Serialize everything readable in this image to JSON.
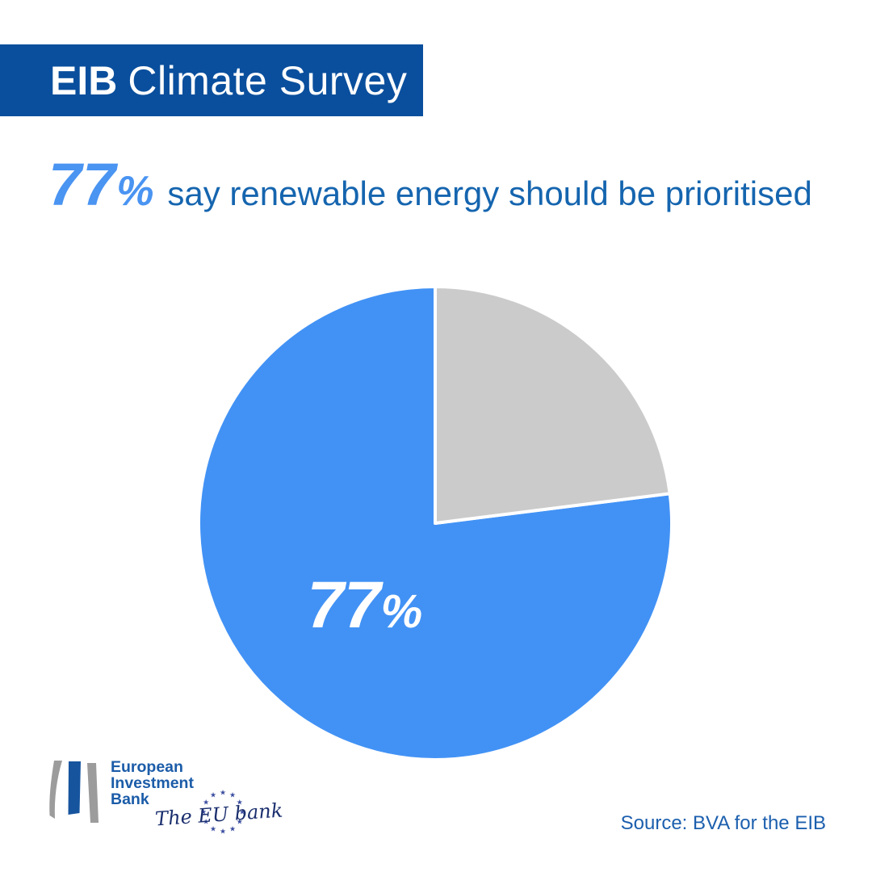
{
  "banner": {
    "brand": "EIB",
    "title": "Climate Survey"
  },
  "headline": {
    "stat": "77",
    "stat_unit": "%",
    "text": "say renewable energy should be prioritised"
  },
  "chart_data": {
    "type": "pie",
    "title": "77% say renewable energy should be prioritised",
    "slices": [
      {
        "label_value": "77",
        "label_unit": "%",
        "value": 77,
        "color": "#4292F5"
      },
      {
        "value": 23,
        "color": "#CBCBCB"
      }
    ],
    "start_angle_deg": -90,
    "direction": "counter-clockwise",
    "stroke_color": "#FFFFFF",
    "label_color": "#FFFFFF",
    "label_radius_factor": 0.45,
    "legend": "none",
    "grid": false
  },
  "logo": {
    "lines": [
      "European",
      "Investment",
      "Bank"
    ],
    "tagline": "The EU bank",
    "stars_count": 12,
    "bar_gray": "#9C9C9C",
    "bar_blue": "#16549E",
    "text_color": "#1B5CA8",
    "tagline_color": "#1B2F6E",
    "star_color": "#3A4C9F"
  },
  "source": {
    "text": "Source: BVA for the EIB"
  },
  "colors": {
    "background": "#FFFFFF",
    "banner_blue": "#0A4F9D",
    "banner_text": "#FFFFFF",
    "headline_stat_blue": "#4A94F2",
    "headline_text_blue": "#1565AF",
    "pie_blue": "#4292F5",
    "pie_gray": "#CBCBCB",
    "source_blue": "#1C5FAE"
  }
}
